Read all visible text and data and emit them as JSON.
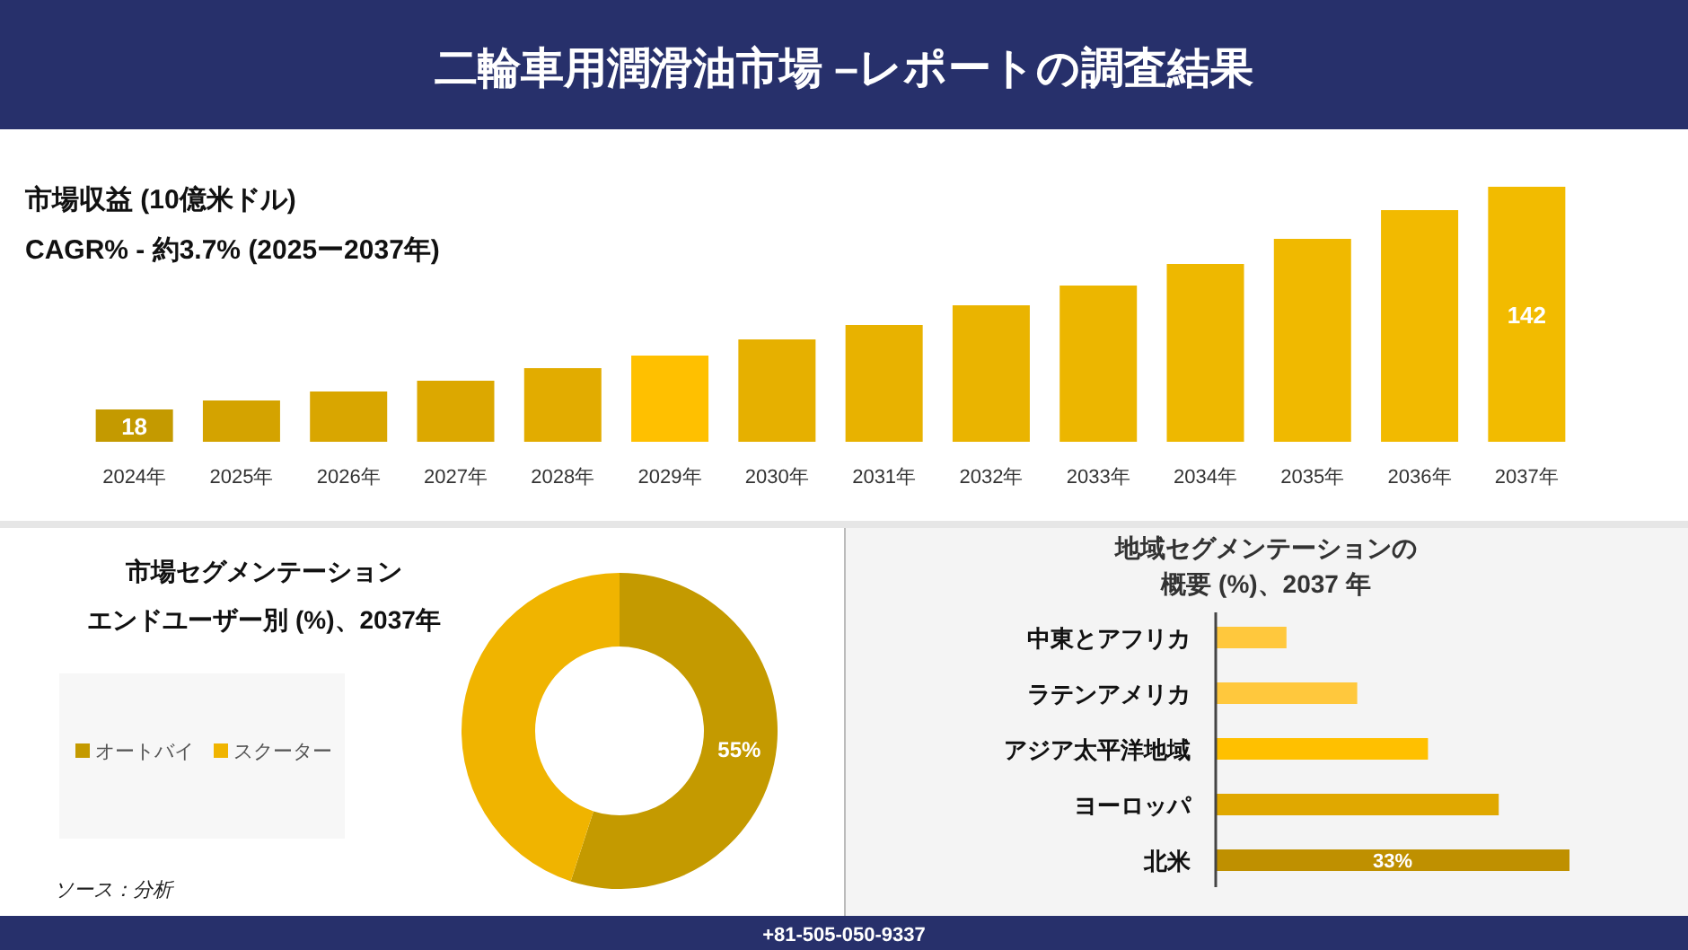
{
  "chart_data": [
    {
      "type": "bar",
      "title": "二輪車用潤滑油市場 –レポートの調査結果",
      "subtitle": "市場収益 (10億米ドル)",
      "annotations": [
        "CAGR% - 約3.7% (2025ー2037年)"
      ],
      "categories": [
        "2024年",
        "2025年",
        "2026年",
        "2027年",
        "2028年",
        "2029年",
        "2030年",
        "2031年",
        "2032年",
        "2033年",
        "2034年",
        "2035年",
        "2036年",
        "2037年"
      ],
      "values": [
        18,
        23,
        28,
        34,
        41,
        48,
        57,
        65,
        76,
        87,
        99,
        113,
        129,
        142
      ],
      "value_labels": [
        "18",
        null,
        null,
        null,
        null,
        null,
        null,
        null,
        null,
        null,
        null,
        null,
        null,
        "142"
      ],
      "colors": [
        "#c49a00",
        "#d4a300",
        "#d9a600",
        "#dca800",
        "#e2ac00",
        "#ffc000",
        "#e6b000",
        "#e8b200",
        "#eab400",
        "#ecb600",
        "#eeb800",
        "#f0b900",
        "#f2ba00",
        "#f2bb00"
      ]
    },
    {
      "type": "donut",
      "title": "市場セグメンテーション",
      "subtitle": "エンドユーザー別 (%)、2037年",
      "legend": "left",
      "categories": [
        "オートバイ",
        "スクーター"
      ],
      "values": [
        55,
        45
      ],
      "colors": [
        "#c49a00",
        "#f0b400"
      ],
      "value_labels": [
        "55%",
        null
      ],
      "annotations": [
        "ソース：分析"
      ]
    },
    {
      "type": "bar",
      "orientation": "horizontal",
      "title": "地域セグメンテーションの",
      "subtitle": "概要 (%)、2037 年",
      "categories": [
        "中東とアフリカ",
        "ラテンアメリカ",
        "アジア太平洋地域",
        "ヨーロッパ",
        "北米"
      ],
      "values": [
        6.6,
        13.2,
        19.8,
        26.4,
        33
      ],
      "colors": [
        "#ffc83d",
        "#ffc83d",
        "#ffc000",
        "#e0a800",
        "#bf9000"
      ],
      "value_labels": [
        null,
        null,
        null,
        null,
        "33%"
      ],
      "annotations": [
        "+81-505-050-9337"
      ]
    }
  ]
}
